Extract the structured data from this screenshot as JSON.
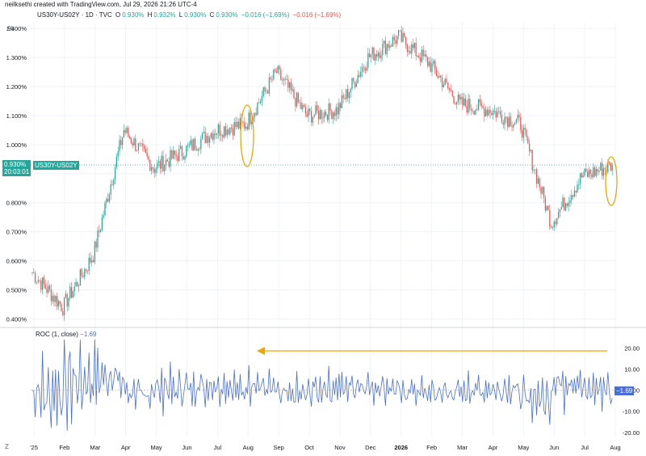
{
  "credit": "neilksethi created with TradingView.com, Jul 29, 2026 21:26 UTC-4",
  "legend": {
    "symbol": "US30Y-US02Y · 1D · TVC",
    "o_label": "O",
    "o_value": "0.930%",
    "h_label": "H",
    "h_value": "0.932%",
    "l_label": "L",
    "l_value": "0.930%",
    "c_label": "C",
    "c_value": "0.930%",
    "change": "−0.016 (−1.69%)",
    "ref": "−0.016 (−1.69%)"
  },
  "price_tag": {
    "value": "0.930%",
    "time": "20:03:01",
    "symbol": "US30Y-US02Y"
  },
  "roc": {
    "title": "ROC (1, close)",
    "value": "−1.69",
    "badge": "−1.69"
  },
  "axis_unit": "%",
  "colors": {
    "up": "#26a69a",
    "down": "#ef5350",
    "roc_line": "#4a6fd4",
    "annotation": "#f0a500",
    "grid": "#f0f3fa",
    "axis_text": "#131722"
  },
  "logo_text": "𝐙",
  "chart_data": [
    {
      "type": "candlestick",
      "title": "",
      "y_unit": "%",
      "y_ticks": [
        "1.400%",
        "1.300%",
        "1.200%",
        "1.100%",
        "1.000%",
        "0.900%",
        "0.800%",
        "0.700%",
        "0.600%",
        "0.500%",
        "0.400%"
      ],
      "ylim": [
        0.39,
        1.42
      ],
      "x_ticks": [
        "'25",
        "Feb",
        "Mar",
        "Apr",
        "May",
        "Jun",
        "Jul",
        "Aug",
        "Sep",
        "Oct",
        "Nov",
        "Dec",
        "2026",
        "Feb",
        "Mar",
        "Apr",
        "May",
        "Jun",
        "Jul",
        "Aug"
      ],
      "key_points": [
        {
          "month": "Jan 2025",
          "close": 0.56
        },
        {
          "month": "Feb 2025",
          "close": 0.44
        },
        {
          "month": "Mar 2025",
          "close": 0.62
        },
        {
          "month": "Apr 2025",
          "close": 1.05
        },
        {
          "month": "May 2025",
          "close": 0.92
        },
        {
          "month": "Jun 2025",
          "close": 0.98
        },
        {
          "month": "Jul 2025",
          "close": 1.05
        },
        {
          "month": "Aug 2025",
          "close": 1.07
        },
        {
          "month": "Sep 2025",
          "close": 1.25
        },
        {
          "month": "Oct 2025",
          "close": 1.1
        },
        {
          "month": "Nov 2025",
          "close": 1.12
        },
        {
          "month": "Dec 2025",
          "close": 1.3
        },
        {
          "month": "Jan 2026",
          "close": 1.37
        },
        {
          "month": "Feb 2026",
          "close": 1.28
        },
        {
          "month": "Mar 2026",
          "close": 1.14
        },
        {
          "month": "Apr 2026",
          "close": 1.12
        },
        {
          "month": "May 2026",
          "close": 1.07
        },
        {
          "month": "Jun 2026",
          "close": 0.73
        },
        {
          "month": "Jul 2026",
          "close": 0.89
        },
        {
          "month": "Aug 2026",
          "close": 0.93
        }
      ],
      "last_value": 0.93
    },
    {
      "type": "line",
      "title": "ROC (1, close)",
      "y_ticks": [
        "20.00",
        "10.00",
        "0.00",
        "-10.00",
        "-20.00"
      ],
      "ylim": [
        -22,
        24
      ],
      "last_value": -1.69
    }
  ]
}
